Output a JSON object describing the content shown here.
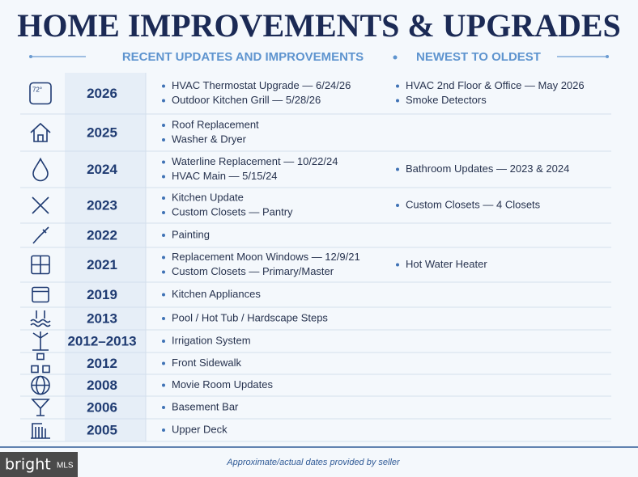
{
  "header": {
    "title": "HOME IMPROVEMENTS & UPGRADES",
    "subtitle_left": "RECENT UPDATES AND IMPROVEMENTS",
    "subtitle_right": "NEWEST TO OLDEST"
  },
  "table": {
    "rows": [
      {
        "icon_label": "72°",
        "year": "2026",
        "items": [
          "HVAC Thermostat Upgrade — 6/24/26",
          "Outdoor Kitchen Grill — 5/28/26"
        ],
        "items_right": [
          "HVAC 2nd Floor & Office — May 2026",
          "Smoke Detectors"
        ]
      },
      {
        "year": "2025",
        "items": [
          "Roof Replacement",
          "Washer & Dryer"
        ],
        "items_right": []
      },
      {
        "year": "2024",
        "items": [
          "Waterline Replacement — 10/22/24",
          "HVAC Main — 5/15/24"
        ],
        "items_right": [
          "Bathroom Updates — 2023 & 2024"
        ]
      },
      {
        "year": "2023",
        "items": [
          "Kitchen Update",
          "Custom Closets — Pantry"
        ],
        "items_right": [
          "Custom Closets — 4 Closets"
        ]
      },
      {
        "year": "2022",
        "items": [
          "Painting"
        ],
        "items_right": []
      },
      {
        "year": "2021",
        "items": [
          "Replacement Moon Windows — 12/9/21",
          "Custom Closets — Primary/Master"
        ],
        "items_right": [
          "Hot Water Heater"
        ]
      },
      {
        "year": "2019",
        "items": [
          "Kitchen Appliances"
        ],
        "items_right": []
      },
      {
        "year": "2013",
        "items": [
          "Pool / Hot Tub / Hardscape Steps"
        ],
        "items_right": []
      },
      {
        "year": "2012–2013",
        "items": [
          "Irrigation System"
        ],
        "items_right": []
      },
      {
        "year": "2012",
        "items": [
          "Front Sidewalk"
        ],
        "items_right": []
      },
      {
        "year": "2008",
        "items": [
          "Movie Room Updates"
        ],
        "items_right": []
      },
      {
        "year": "2006",
        "items": [
          "Basement Bar"
        ],
        "items_right": []
      },
      {
        "year": "2005",
        "items": [
          "Upper Deck"
        ],
        "items_right": []
      }
    ]
  },
  "footer": {
    "note": "Approximate/actual dates provided by seller"
  },
  "watermark": {
    "brand": "bright",
    "suffix": "MLS"
  }
}
